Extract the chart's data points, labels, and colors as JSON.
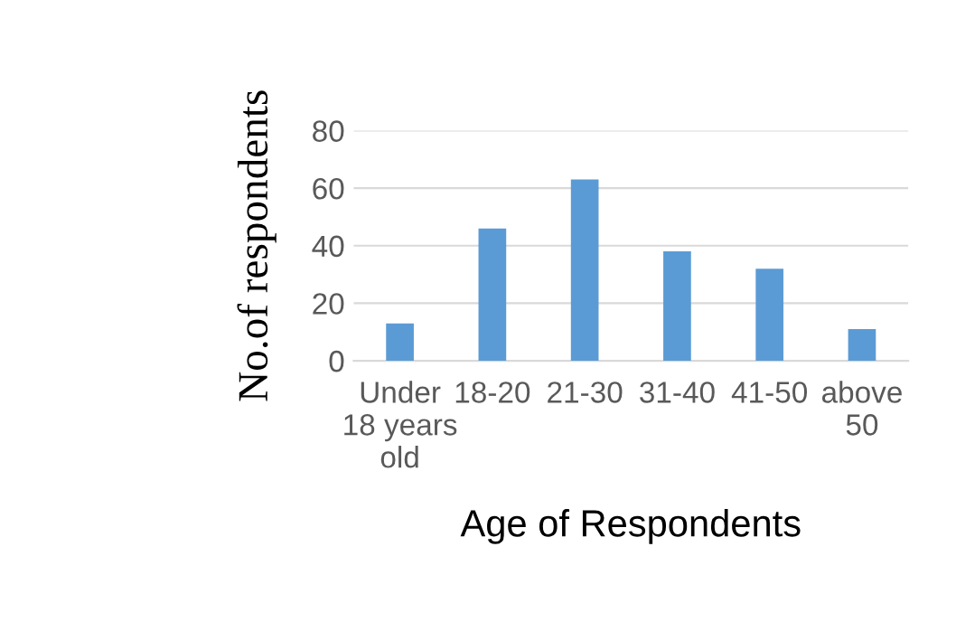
{
  "chart_data": {
    "type": "bar",
    "xlabel": "Age of Respondents",
    "ylabel": "No.of respondents",
    "categories": [
      "Under\n18 years\nold",
      "18-20",
      "21-30",
      "31-40",
      "41-50",
      "above\n50"
    ],
    "values": [
      13,
      46,
      63,
      38,
      32,
      11
    ],
    "color": "#5b9bd5",
    "ylim": [
      0,
      80
    ],
    "yticks": [
      0,
      20,
      40,
      60,
      80
    ],
    "grid": "y"
  }
}
